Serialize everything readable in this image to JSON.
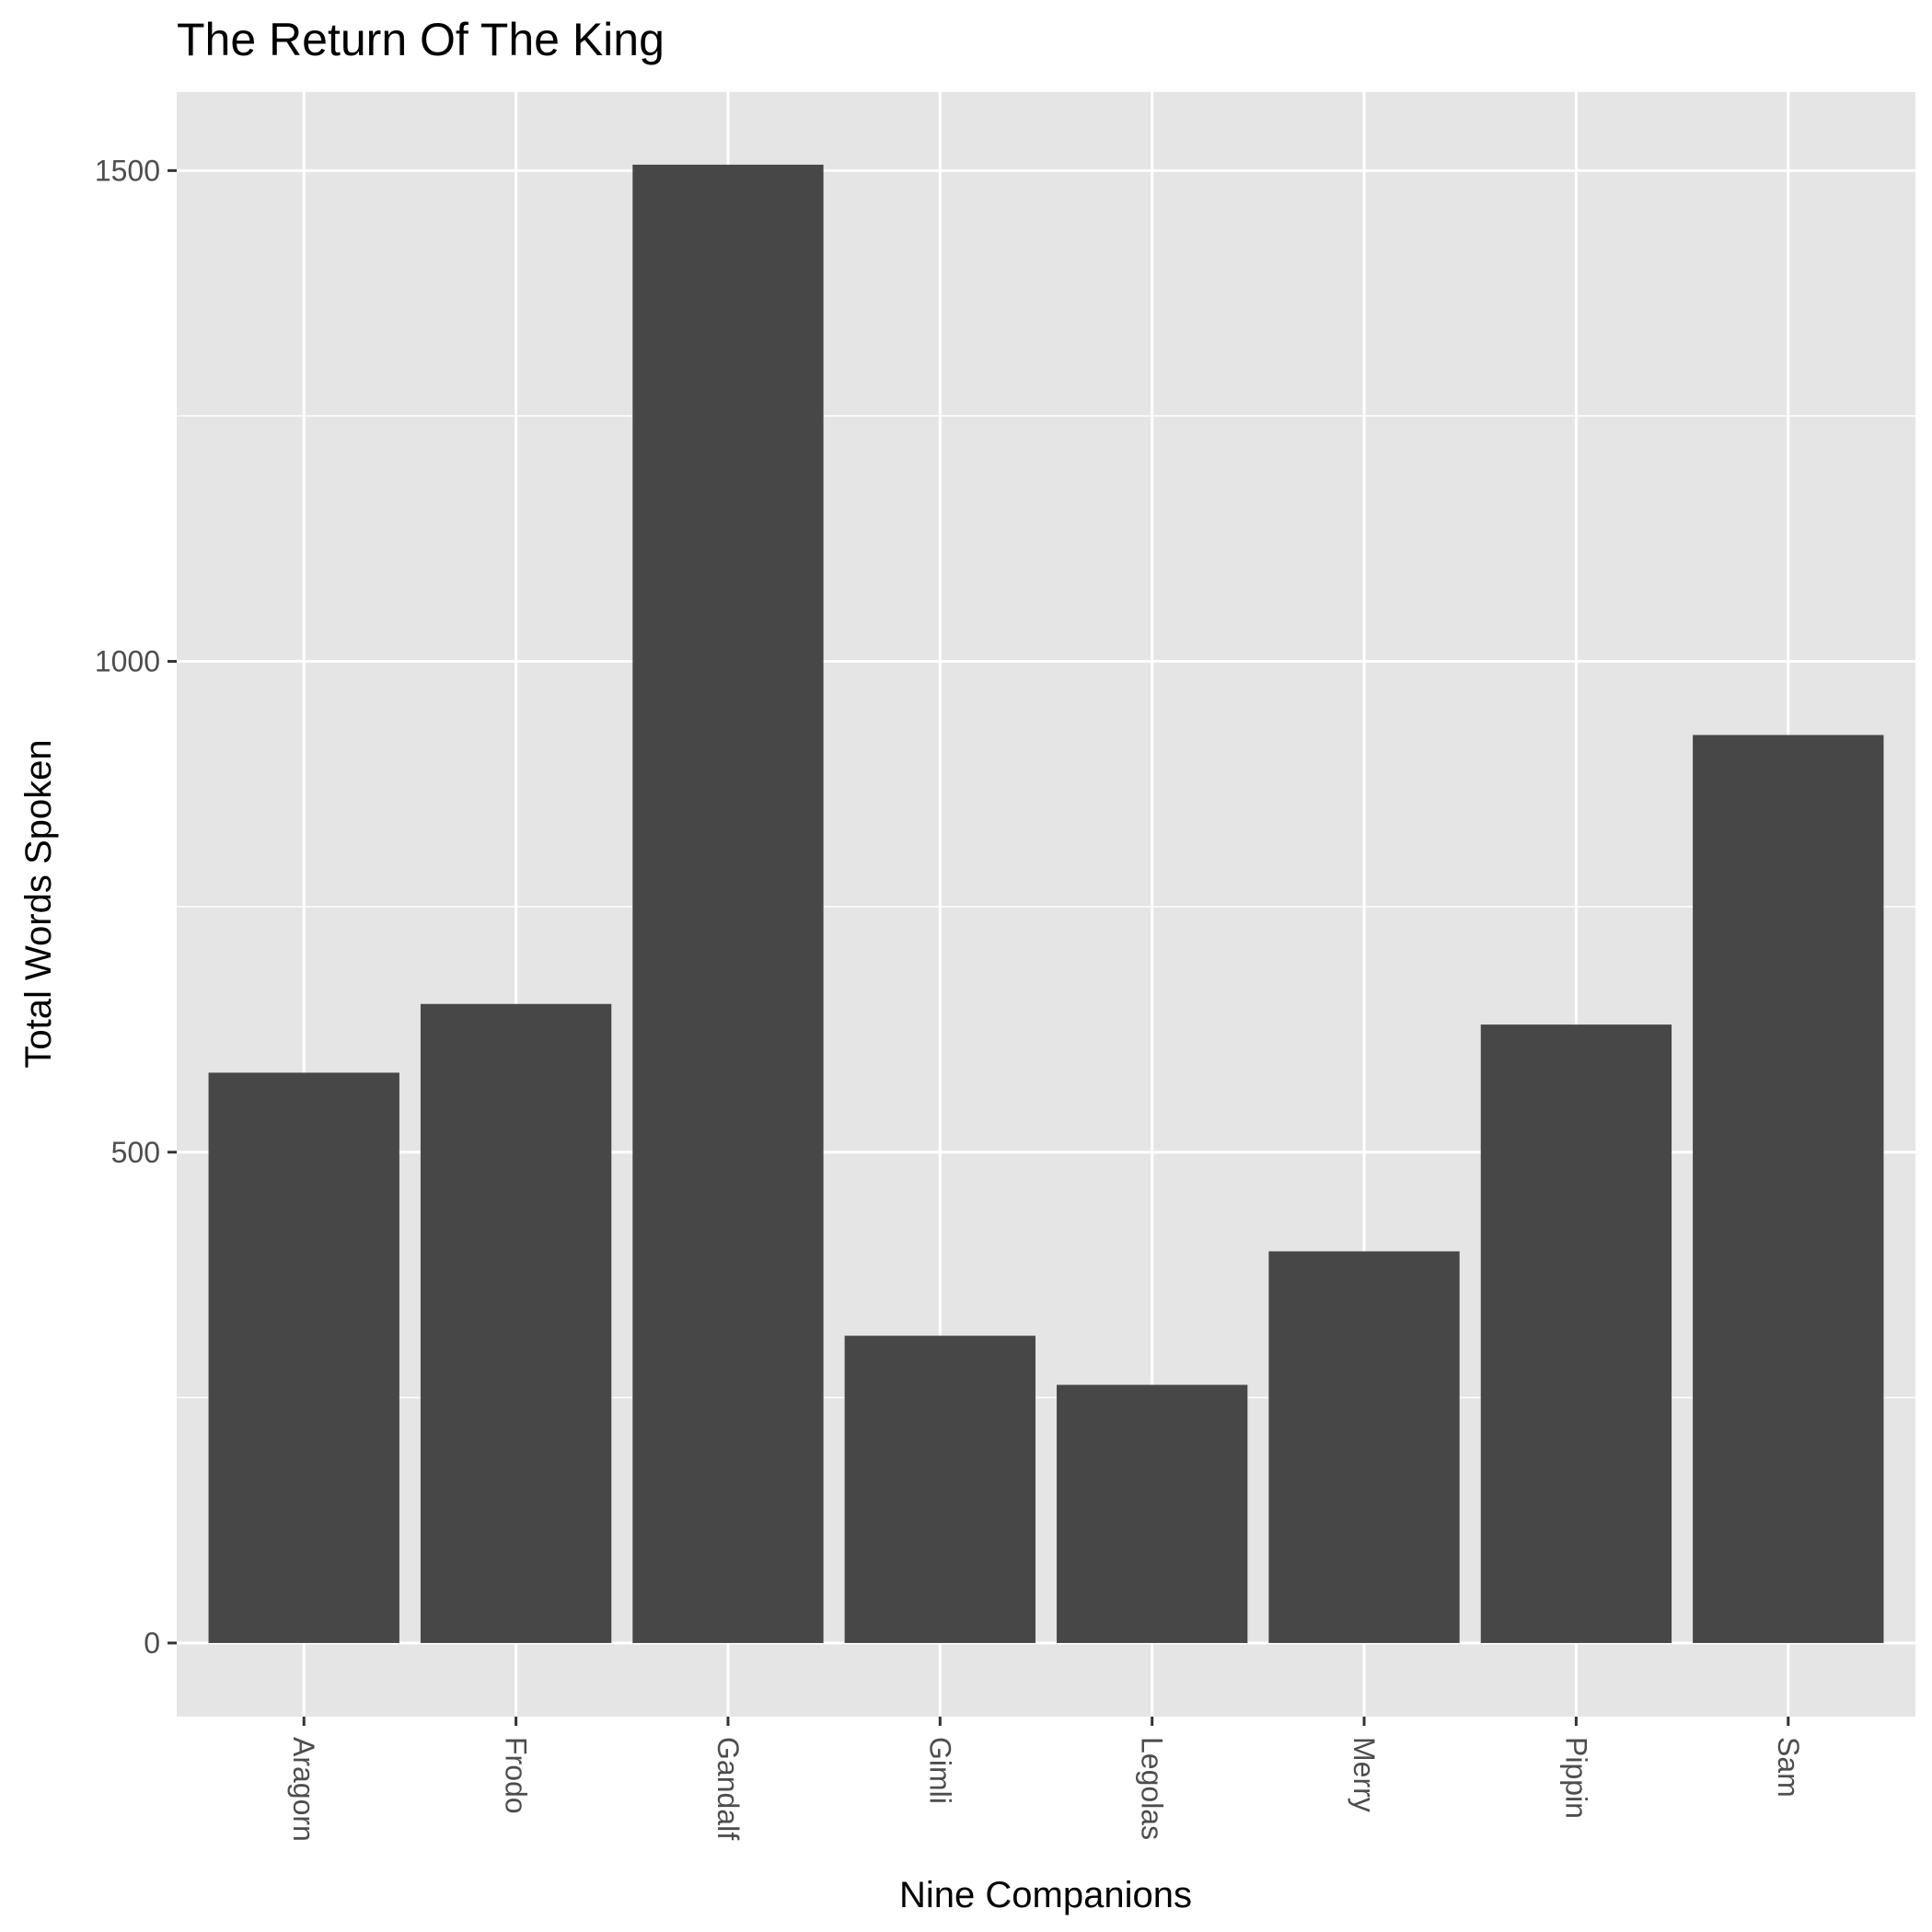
{
  "chart_data": {
    "type": "bar",
    "title": "The Return Of The King",
    "xlabel": "Nine Companions",
    "ylabel": "Total Words Spoken",
    "categories": [
      "Aragorn",
      "Frodo",
      "Gandalf",
      "Gimli",
      "Legolas",
      "Merry",
      "Pippin",
      "Sam"
    ],
    "values": [
      581,
      651,
      1506,
      313,
      263,
      399,
      630,
      925
    ],
    "ylim": [
      -75,
      1580
    ],
    "yticks": [
      0,
      500,
      1000,
      1500
    ],
    "grid": true,
    "legend": "none",
    "colors": {
      "bar": "#474747",
      "panel": "#e5e5e5",
      "grid": "#ffffff",
      "tick": "#333333"
    }
  }
}
